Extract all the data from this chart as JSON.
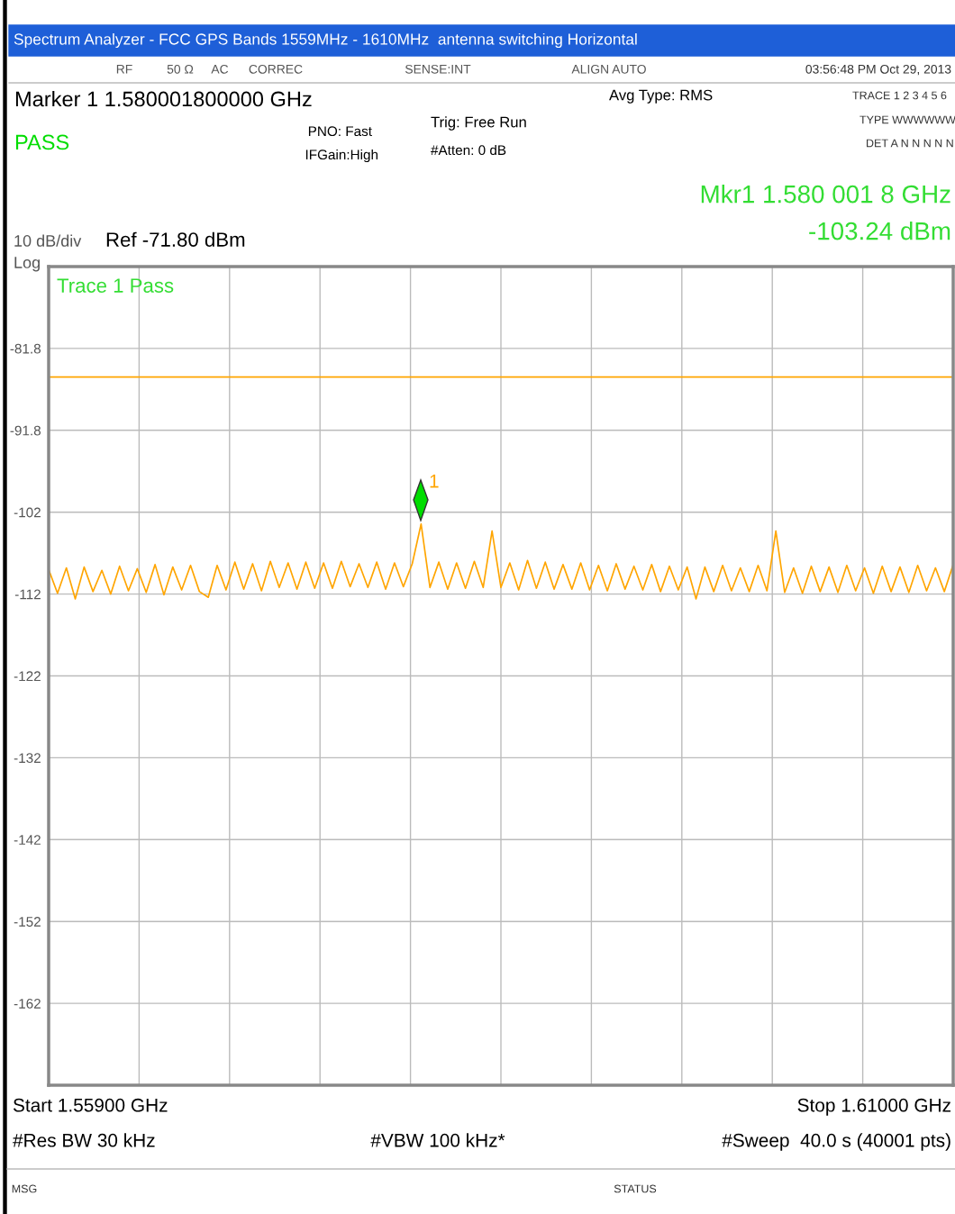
{
  "chart_data": {
    "type": "line",
    "title": "Spectrum Analyzer - FCC GPS Bands 1559MHz - 1610MHz  antenna switching Horizontal",
    "categories": [
      null,
      null,
      null,
      null,
      null,
      null,
      null,
      null,
      null,
      null,
      null,
      null,
      null,
      null,
      null,
      null,
      null,
      null,
      null,
      null,
      null,
      null,
      null,
      null,
      null,
      null,
      null,
      null,
      null,
      null,
      null,
      null,
      null,
      null,
      null,
      null,
      null,
      null,
      null,
      null,
      null,
      null,
      null,
      null,
      null,
      null,
      null,
      null,
      null,
      null,
      null,
      null,
      null,
      null,
      null,
      null,
      null,
      null,
      null,
      null,
      null,
      null,
      null,
      null,
      null,
      null,
      null,
      null,
      null,
      null,
      null,
      null,
      null,
      null,
      null,
      null,
      null,
      null,
      null,
      null,
      null,
      null,
      null,
      null,
      null,
      null,
      null,
      null,
      null,
      null,
      null,
      null,
      null,
      null,
      null,
      null,
      null,
      null,
      null,
      null,
      null,
      null,
      null
    ],
    "series": [
      {
        "color": "#ffa500",
        "values": [
          -108.8,
          -111.7,
          -108.6,
          -112.4,
          -108.5,
          -111.5,
          -108.9,
          -111.8,
          -108.4,
          -111.4,
          -108.7,
          -111.6,
          -108.2,
          -111.9,
          -108.5,
          -111.3,
          -108.3,
          -111.5,
          -112.2,
          -108.3,
          -111.3,
          -107.9,
          -111.2,
          -108.1,
          -111.4,
          -107.8,
          -111.0,
          -108.0,
          -111.2,
          -107.9,
          -111.1,
          -108.0,
          -111.1,
          -107.8,
          -110.9,
          -108.1,
          -111.0,
          -107.9,
          -111.2,
          -108.0,
          -110.9,
          -108.1,
          -103.24,
          -111.0,
          -107.9,
          -111.2,
          -108.0,
          -111.1,
          -107.8,
          -111.0,
          -104.1,
          -111.0,
          -108.0,
          -111.3,
          -107.7,
          -111.1,
          -107.9,
          -111.2,
          -108.2,
          -111.2,
          -108.0,
          -111.3,
          -108.3,
          -111.4,
          -108.1,
          -111.2,
          -108.4,
          -111.3,
          -108.2,
          -111.5,
          -108.4,
          -111.3,
          -108.5,
          -112.4,
          -108.5,
          -111.5,
          -108.3,
          -111.4,
          -108.6,
          -111.5,
          -108.3,
          -111.4,
          -104.1,
          -111.6,
          -108.6,
          -111.7,
          -108.4,
          -111.5,
          -108.5,
          -111.6,
          -108.3,
          -111.4,
          -108.6,
          -111.7,
          -108.4,
          -111.5,
          -108.5,
          -111.6,
          -108.3,
          -111.4,
          -108.6,
          -111.5,
          -108.2
        ]
      }
    ],
    "ylim": [
      -171.8,
      -71.8
    ],
    "yticks": [
      {
        "value": -81.8,
        "label": "-81.8"
      },
      {
        "value": -91.8,
        "label": "-91.8"
      },
      {
        "value": -101.8,
        "label": "-102"
      },
      {
        "value": -111.8,
        "label": "-112"
      },
      {
        "value": -121.8,
        "label": "-122"
      },
      {
        "value": -131.8,
        "label": "-132"
      },
      {
        "value": -141.8,
        "label": "-142"
      },
      {
        "value": -151.8,
        "label": "-152"
      },
      {
        "value": -161.8,
        "label": "-162"
      }
    ],
    "tick_labels": "y",
    "grid": true,
    "line_style": "solid",
    "ref_lines": [
      {
        "axis": "y",
        "value": -85.3,
        "color": "#ffa500",
        "line_style": "solid"
      }
    ],
    "annotations": [
      "1",
      "RF",
      "50 Ω",
      "AC",
      "CORREC",
      "SENSE:INT",
      "ALIGN AUTO",
      "03:56:48 PM Oct 29, 2013",
      "Marker 1 1.580001800000 GHz",
      "PASS",
      "PNO: Fast",
      "IFGain:High",
      "Trig: Free Run",
      "#Atten: 0 dB",
      "Avg Type: RMS",
      "TRACE 1 2 3 4 5 6",
      "TYPE WWWWWW",
      "DET A N N N N N",
      "Mkr1 1.580 001 8 GHz",
      "-103.24 dBm",
      "10 dB/div",
      "Log",
      "Ref -71.80 dBm",
      "Trace 1 Pass",
      "Start 1.55900 GHz",
      "Stop 1.61000 GHz",
      "#Res BW 30 kHz",
      "#VBW 100 kHz*",
      "#Sweep  40.0 s (40001 pts)",
      "MSG",
      "STATUS"
    ]
  }
}
